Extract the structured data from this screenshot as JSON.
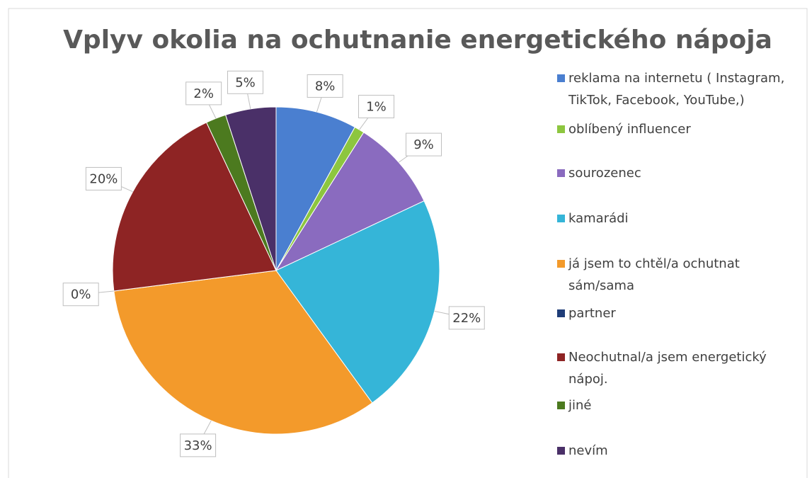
{
  "chart_data": {
    "type": "pie",
    "title": "Vplyv okolia na ochutnanie energetického nápoja",
    "categories": [
      "reklama na internetu ( Instagram, TikTok, Facebook, YouTube,)",
      "oblíbený influencer",
      "sourozenec",
      "kamarádi",
      "já jsem to chtěl/a ochutnat sám/sama",
      "partner",
      "Neochutnal/a jsem energetický nápoj.",
      "jiné",
      "nevím"
    ],
    "values": [
      8,
      1,
      9,
      22,
      33,
      0,
      20,
      2,
      5
    ],
    "value_labels": [
      "8%",
      "1%",
      "9%",
      "22%",
      "33%",
      "0%",
      "20%",
      "2%",
      "5%"
    ],
    "colors": [
      "#4a7fd0",
      "#8dc63f",
      "#8a6bbf",
      "#35b5d8",
      "#f39a2b",
      "#1f3d78",
      "#8e2424",
      "#4c7a1f",
      "#4a3068"
    ],
    "legend": "right"
  }
}
